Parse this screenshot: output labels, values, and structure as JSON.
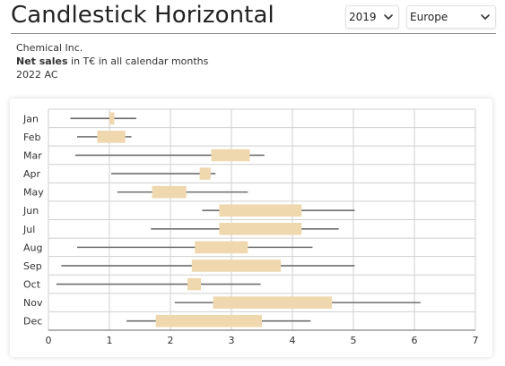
{
  "header": {
    "title": "Candlestick Horizontal",
    "year_select": {
      "value": "2019",
      "icon": "chevron-down-icon"
    },
    "region_select": {
      "value": "Europe",
      "icon": "chevron-down-icon"
    }
  },
  "subtitle": {
    "company": "Chemical Inc.",
    "measure_bold": "Net sales",
    "measure_rest": " in T€ in all calendar months",
    "scenario": "2022 AC"
  },
  "colors": {
    "box_fill": "#efd7ae",
    "whisker": "#6e6e6e",
    "grid": "#cfcfcf",
    "axis": "#666666"
  },
  "chart_data": {
    "type": "candlestick-horizontal",
    "orientation": "horizontal",
    "categories": [
      "Jan",
      "Feb",
      "Mar",
      "Apr",
      "May",
      "Jun",
      "Jul",
      "Aug",
      "Sep",
      "Oct",
      "Nov",
      "Dec"
    ],
    "low": [
      0.36,
      0.47,
      0.44,
      1.03,
      1.13,
      2.52,
      1.68,
      0.47,
      0.21,
      0.13,
      2.07,
      1.28
    ],
    "open": [
      1.0,
      0.8,
      2.67,
      2.48,
      1.7,
      2.8,
      2.8,
      2.4,
      2.35,
      2.28,
      2.7,
      1.76
    ],
    "close": [
      1.08,
      1.26,
      3.3,
      2.66,
      2.26,
      4.15,
      4.15,
      3.27,
      3.81,
      2.5,
      4.65,
      3.5
    ],
    "high": [
      1.44,
      1.36,
      3.54,
      2.74,
      3.27,
      5.02,
      4.76,
      4.33,
      5.02,
      3.48,
      6.1,
      4.3
    ],
    "xlim": [
      0,
      7
    ],
    "xticks": [
      "0",
      "1",
      "2",
      "3",
      "4",
      "5",
      "6",
      "7"
    ],
    "grid": true
  }
}
